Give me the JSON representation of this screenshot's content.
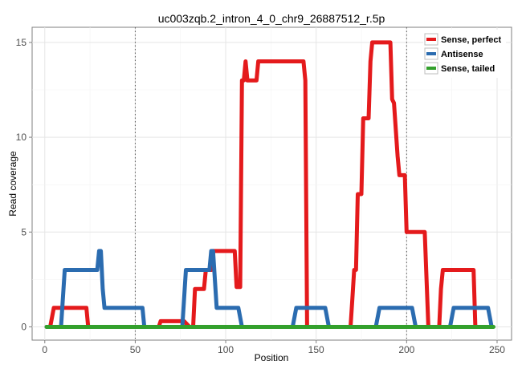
{
  "chart_data": {
    "type": "line",
    "title": "uc003zqb.2_intron_4_0_chr9_26887512_r.5p",
    "xlabel": "Position",
    "ylabel": "Read coverage",
    "xlim": [
      -7,
      258
    ],
    "ylim": [
      -0.7,
      15.8
    ],
    "x_ticks": [
      0,
      50,
      100,
      150,
      200,
      250
    ],
    "y_ticks": [
      0,
      5,
      10,
      15
    ],
    "x_tick_labels": [
      "0",
      "50",
      "100",
      "150",
      "200",
      "250"
    ],
    "y_tick_labels": [
      "0",
      "5",
      "10",
      "15"
    ],
    "vlines": [
      50,
      200
    ],
    "grid": true,
    "legend_position": "top-right",
    "series": [
      {
        "name": "Sense, perfect",
        "color": "#e41a1c",
        "points": [
          [
            1,
            0
          ],
          [
            3,
            0
          ],
          [
            5,
            1
          ],
          [
            23,
            1
          ],
          [
            24,
            0
          ],
          [
            63,
            0
          ],
          [
            64,
            0.3
          ],
          [
            77,
            0.3
          ],
          [
            80,
            0
          ],
          [
            82,
            0
          ],
          [
            83,
            2
          ],
          [
            85,
            2
          ],
          [
            86,
            2
          ],
          [
            88,
            2
          ],
          [
            89,
            3
          ],
          [
            92,
            3
          ],
          [
            93,
            4
          ],
          [
            100,
            4
          ],
          [
            105,
            4
          ],
          [
            106,
            2.1
          ],
          [
            108,
            2.1
          ],
          [
            109,
            13
          ],
          [
            110,
            13
          ],
          [
            111,
            14
          ],
          [
            112,
            13
          ],
          [
            117,
            13
          ],
          [
            118,
            14
          ],
          [
            143,
            14
          ],
          [
            144,
            13
          ],
          [
            145,
            0
          ],
          [
            169,
            0
          ],
          [
            170,
            1.5
          ],
          [
            171,
            3
          ],
          [
            172,
            3
          ],
          [
            173,
            7
          ],
          [
            175,
            7
          ],
          [
            176,
            11
          ],
          [
            179,
            11
          ],
          [
            180,
            14
          ],
          [
            181,
            15
          ],
          [
            191,
            15
          ],
          [
            192,
            12
          ],
          [
            193,
            11.8
          ],
          [
            195,
            9
          ],
          [
            196,
            8
          ],
          [
            197,
            8
          ],
          [
            199,
            8
          ],
          [
            200,
            5
          ],
          [
            210,
            5
          ],
          [
            212,
            0
          ],
          [
            218,
            0
          ],
          [
            219,
            2
          ],
          [
            220,
            3
          ],
          [
            237,
            3
          ],
          [
            238,
            0
          ],
          [
            246,
            0
          ]
        ]
      },
      {
        "name": "Antisense",
        "color": "#2b6cb0",
        "points": [
          [
            1,
            0
          ],
          [
            9,
            0
          ],
          [
            11,
            3
          ],
          [
            29,
            3
          ],
          [
            30,
            4
          ],
          [
            31,
            4
          ],
          [
            32,
            2
          ],
          [
            33,
            1
          ],
          [
            54,
            1
          ],
          [
            55,
            0
          ],
          [
            76,
            0
          ],
          [
            78,
            3
          ],
          [
            88,
            3
          ],
          [
            89,
            3
          ],
          [
            91,
            3
          ],
          [
            92,
            4
          ],
          [
            93,
            4
          ],
          [
            95,
            1
          ],
          [
            107,
            1
          ],
          [
            109,
            0
          ],
          [
            137,
            0
          ],
          [
            139,
            1
          ],
          [
            155,
            1
          ],
          [
            157,
            0
          ],
          [
            183,
            0
          ],
          [
            185,
            1
          ],
          [
            203,
            1
          ],
          [
            205,
            0
          ],
          [
            224,
            0
          ],
          [
            226,
            1
          ],
          [
            245,
            1
          ],
          [
            247,
            0
          ]
        ]
      },
      {
        "name": "Sense, tailed",
        "color": "#33a02c",
        "points": [
          [
            1,
            0
          ],
          [
            248,
            0
          ]
        ]
      }
    ]
  }
}
